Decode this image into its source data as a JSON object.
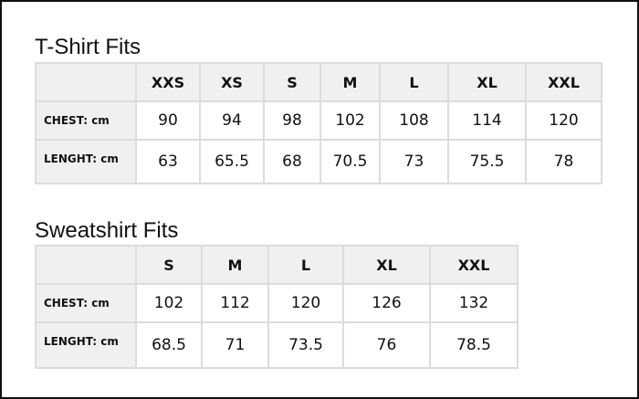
{
  "tables": [
    {
      "title": "T-Shirt Fits",
      "sizes": [
        "XXS",
        "XS",
        "S",
        "M",
        "L",
        "XL",
        "XXL"
      ],
      "rows": [
        {
          "label": "CHEST: cm",
          "values": [
            "90",
            "94",
            "98",
            "102",
            "108",
            "114",
            "120"
          ]
        },
        {
          "label": "LENGHT: cm",
          "values": [
            "63",
            "65.5",
            "68",
            "70.5",
            "73",
            "75.5",
            "78"
          ]
        }
      ]
    },
    {
      "title": "Sweatshirt Fits",
      "sizes": [
        "S",
        "M",
        "L",
        "XL",
        "XXL"
      ],
      "rows": [
        {
          "label": "CHEST: cm",
          "values": [
            "102",
            "112",
            "120",
            "126",
            "132"
          ]
        },
        {
          "label": "LENGHT: cm",
          "values": [
            "68.5",
            "71",
            "73.5",
            "76",
            "78.5"
          ]
        }
      ]
    }
  ]
}
